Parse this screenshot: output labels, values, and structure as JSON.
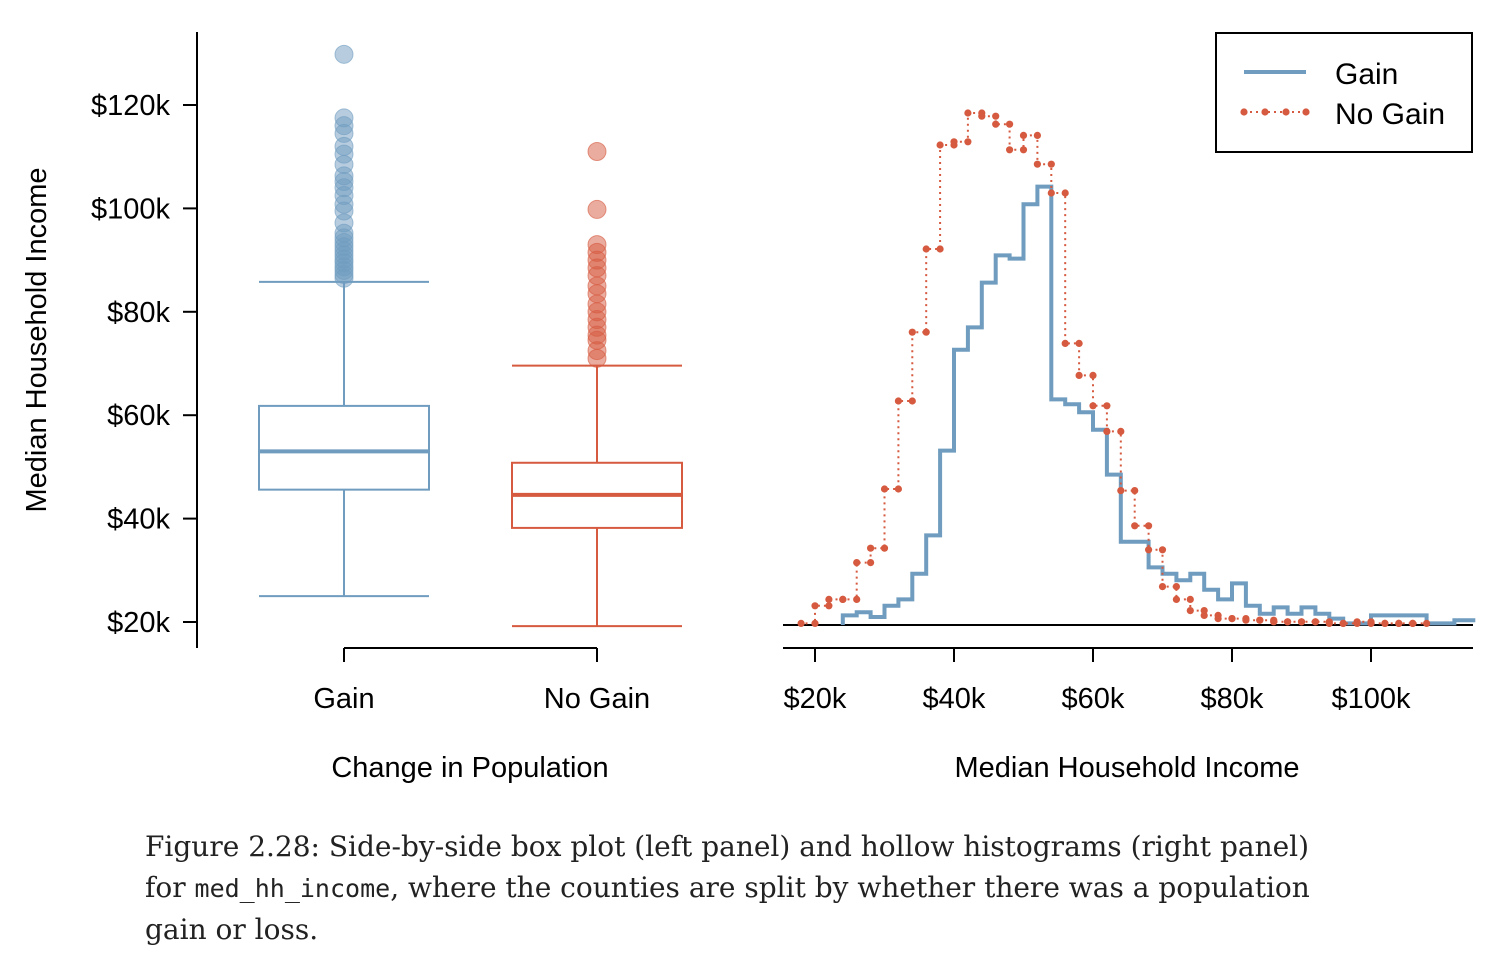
{
  "colors": {
    "gain": "#6f9cbf",
    "no_gain": "#d65a3f",
    "axis": "#000000"
  },
  "chart_data": [
    {
      "type": "box",
      "panel": "left",
      "ylabel": "Median Household Income",
      "xlabel": "Change in Population",
      "ylim": [
        17000,
        135000
      ],
      "y_ticks": [
        20000,
        40000,
        60000,
        80000,
        100000,
        120000
      ],
      "y_tick_labels": [
        "$20k",
        "$40k",
        "$60k",
        "$80k",
        "$100k",
        "$120k"
      ],
      "categories": [
        "Gain",
        "No Gain"
      ],
      "series": [
        {
          "name": "Gain",
          "whisker_low": 25000,
          "q1": 45600,
          "median": 53000,
          "q3": 61800,
          "whisker_high": 85800,
          "outliers": [
            86500,
            87200,
            88000,
            88700,
            89500,
            90200,
            91000,
            91800,
            92600,
            93400,
            94300,
            95200,
            97200,
            99500,
            100800,
            102500,
            104000,
            105200,
            106300,
            108500,
            110500,
            112000,
            114500,
            116000,
            117500,
            129800
          ]
        },
        {
          "name": "No Gain",
          "whisker_low": 19200,
          "q1": 38200,
          "median": 44600,
          "q3": 50800,
          "whisker_high": 69600,
          "outliers": [
            71000,
            72500,
            74500,
            75500,
            77000,
            78500,
            80000,
            81500,
            83500,
            85000,
            87000,
            88500,
            90000,
            91500,
            93000,
            99800,
            111000
          ]
        }
      ]
    },
    {
      "type": "histogram",
      "panel": "right",
      "xlabel": "Median Household Income",
      "xlim": [
        15500,
        115000
      ],
      "x_ticks": [
        20000,
        40000,
        60000,
        80000,
        100000
      ],
      "x_tick_labels": [
        "$20k",
        "$40k",
        "$60k",
        "$80k",
        "$100k"
      ],
      "legend": {
        "position": "top-right",
        "entries": [
          "Gain",
          "No Gain"
        ]
      },
      "series": [
        {
          "name": "Gain",
          "style": "solid",
          "bin_edges": [
            24000,
            26000,
            28000,
            30000,
            32000,
            34000,
            36000,
            38000,
            40000,
            42000,
            44000,
            46000,
            48000,
            50000,
            52000,
            54000,
            56000,
            58000,
            60000,
            62000,
            64000,
            66000,
            68000,
            70000,
            72000,
            74000,
            76000,
            78000,
            80000,
            82000,
            84000,
            86000,
            88000,
            90000,
            92000,
            94000,
            96000,
            98000,
            100000,
            102000,
            104000,
            106000,
            108000,
            110000,
            112000,
            114000,
            115000
          ],
          "counts": [
            0.006,
            0.008,
            0.005,
            0.012,
            0.016,
            0.032,
            0.056,
            0.109,
            0.172,
            0.186,
            0.214,
            0.231,
            0.229,
            0.263,
            0.274,
            0.141,
            0.138,
            0.133,
            0.122,
            0.094,
            0.052,
            0.052,
            0.036,
            0.032,
            0.028,
            0.032,
            0.022,
            0.016,
            0.026,
            0.012,
            0.007,
            0.011,
            0.007,
            0.011,
            0.007,
            0.004,
            0.001,
            0.001,
            0.006,
            0.006,
            0.006,
            0.006,
            0.001,
            0.001,
            0.003,
            0.003
          ]
        },
        {
          "name": "No Gain",
          "style": "dotted",
          "bin_edges": [
            18000,
            20000,
            22000,
            24000,
            26000,
            28000,
            30000,
            32000,
            34000,
            36000,
            38000,
            40000,
            42000,
            44000,
            46000,
            48000,
            50000,
            52000,
            54000,
            56000,
            58000,
            60000,
            62000,
            64000,
            66000,
            68000,
            70000,
            72000,
            74000,
            76000,
            78000,
            80000,
            82000,
            84000,
            86000,
            88000,
            90000,
            92000,
            94000,
            96000,
            98000,
            100000,
            102000,
            104000,
            106000,
            108000
          ],
          "counts": [
            0.001,
            0.012,
            0.016,
            0.016,
            0.039,
            0.048,
            0.085,
            0.14,
            0.183,
            0.235,
            0.3,
            0.302,
            0.32,
            0.318,
            0.313,
            0.297,
            0.306,
            0.288,
            0.27,
            0.176,
            0.156,
            0.137,
            0.121,
            0.084,
            0.062,
            0.047,
            0.024,
            0.016,
            0.009,
            0.006,
            0.004,
            0.004,
            0.003,
            0.003,
            0.002,
            0.002,
            0.002,
            0.002,
            0.001,
            0.001,
            0.002,
            0.001,
            0.001,
            0.001,
            0.001
          ]
        }
      ]
    }
  ],
  "caption": {
    "line1": "Figure 2.28: Side-by-side box plot (left panel) and hollow histograms (right panel)",
    "line2_pre": "for ",
    "line2_code": "med_hh_income",
    "line2_post": ", where the counties are split by whether there was a population",
    "line3": "gain or loss."
  }
}
